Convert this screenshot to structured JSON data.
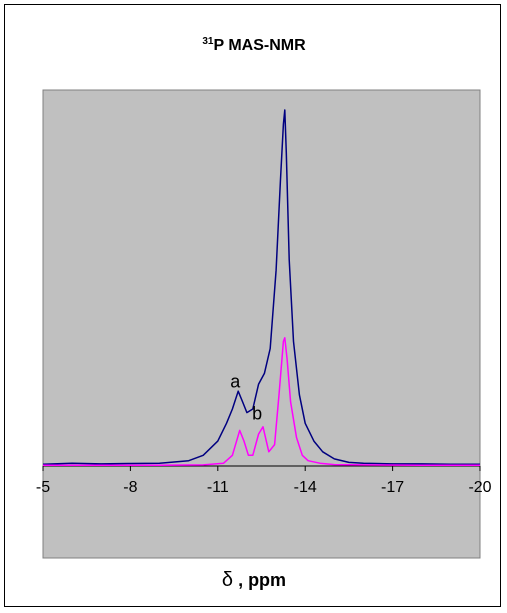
{
  "chart_data": {
    "type": "line",
    "title": {
      "superscript": "31",
      "text": "P MAS-NMR"
    },
    "xlabel": {
      "symbol": "δ",
      "text": " , ppm"
    },
    "ylabel": "",
    "xlim": [
      -5,
      -20
    ],
    "x_reversed": true,
    "x_ticks": [
      -5,
      -8,
      -11,
      -14,
      -17,
      -20
    ],
    "ylim": [
      0,
      100
    ],
    "y_axis_visible": false,
    "grid": false,
    "legend": "none",
    "plot_background": "#c0c0c0",
    "annotations": [
      {
        "text": "a",
        "x": -11.6,
        "y": 22
      },
      {
        "text": "b",
        "x": -12.35,
        "y": 13
      }
    ],
    "series": [
      {
        "color": "#000080",
        "x": [
          -5,
          -6,
          -7,
          -8,
          -9,
          -10,
          -10.5,
          -11,
          -11.3,
          -11.5,
          -11.7,
          -11.85,
          -12.0,
          -12.2,
          -12.4,
          -12.6,
          -12.8,
          -13.0,
          -13.15,
          -13.25,
          -13.3,
          -13.35,
          -13.45,
          -13.6,
          -13.8,
          -14.0,
          -14.3,
          -14.6,
          -15,
          -15.5,
          -16,
          -17,
          -18,
          -19,
          -20
        ],
        "y": [
          0.5,
          0.8,
          0.6,
          0.7,
          0.8,
          1.5,
          3,
          7,
          12,
          16,
          21,
          18,
          15,
          16,
          23,
          26,
          33,
          55,
          80,
          96,
          100,
          88,
          58,
          35,
          20,
          12,
          7,
          4,
          2,
          1,
          0.8,
          0.6,
          0.6,
          0.5,
          0.5
        ]
      },
      {
        "color": "#ff00ff",
        "x": [
          -5,
          -7,
          -9,
          -10.5,
          -11.2,
          -11.5,
          -11.75,
          -11.9,
          -12.05,
          -12.2,
          -12.4,
          -12.55,
          -12.75,
          -12.95,
          -13.1,
          -13.25,
          -13.3,
          -13.38,
          -13.5,
          -13.7,
          -13.9,
          -14.1,
          -14.5,
          -15,
          -16,
          -18,
          -20
        ],
        "y": [
          0.2,
          0.2,
          0.2,
          0.3,
          0.8,
          3,
          10,
          7,
          3,
          3,
          9,
          11,
          4,
          6,
          20,
          35,
          36,
          30,
          18,
          8,
          3,
          1.5,
          0.8,
          0.4,
          0.3,
          0.2,
          0.2
        ]
      }
    ]
  }
}
